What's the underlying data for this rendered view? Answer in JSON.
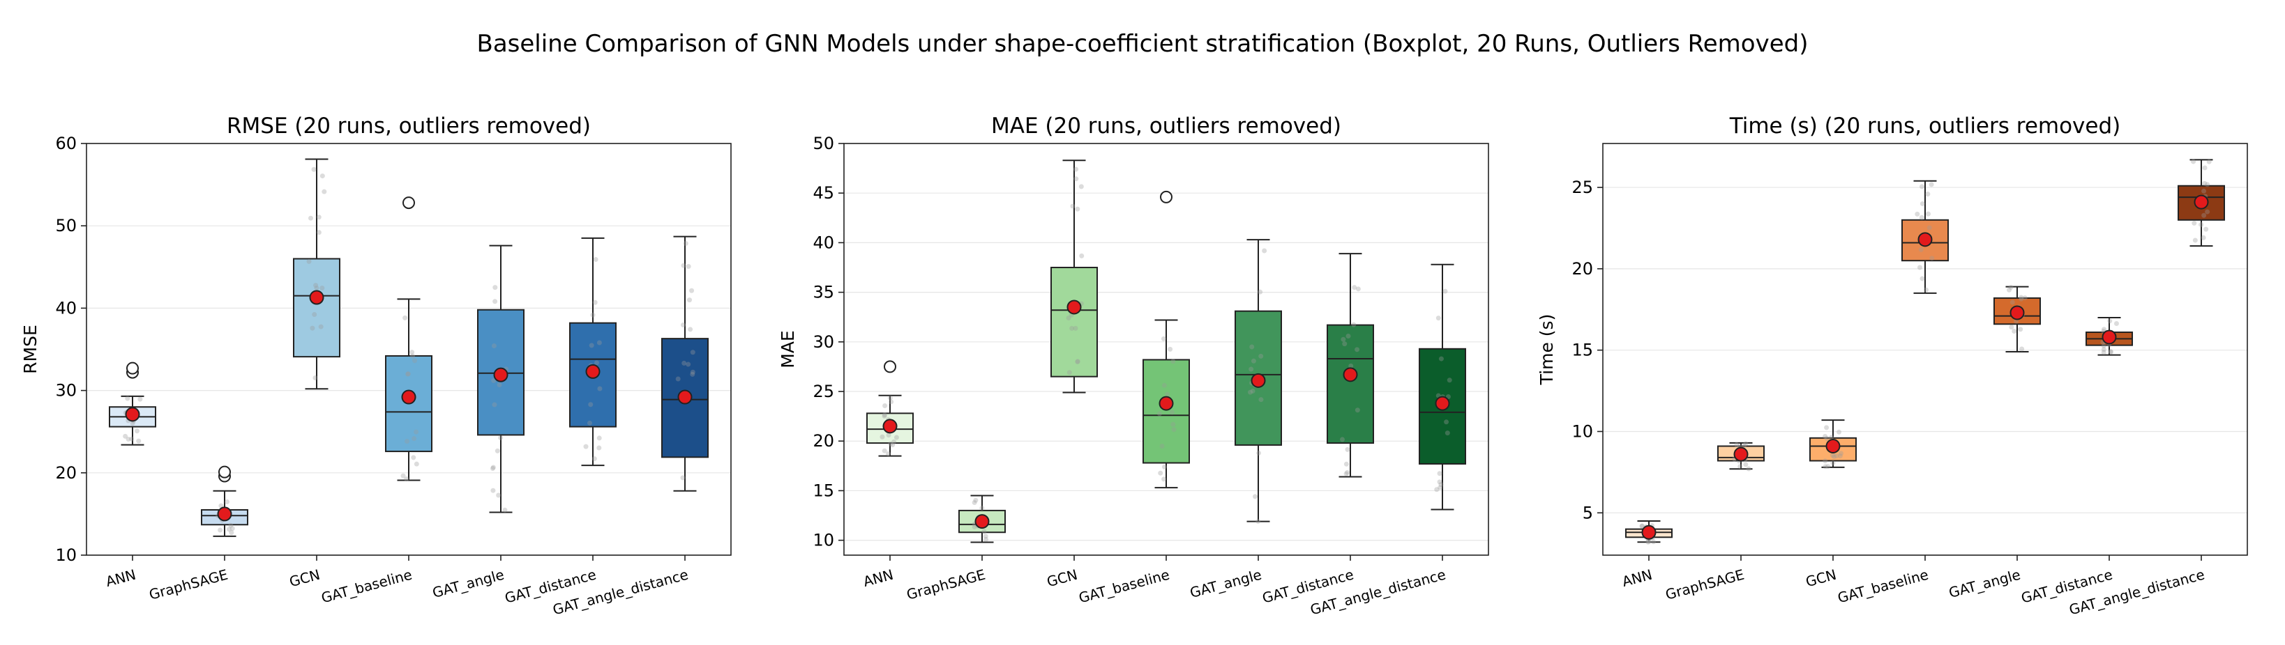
{
  "figure_title": "Baseline Comparison of GNN Models under shape-coefficient stratification (Boxplot, 20 Runs, Outliers Removed)",
  "chart_data": [
    {
      "type": "boxplot",
      "title": "RMSE (20 runs, outliers removed)",
      "ylabel": "RMSE",
      "ylim": [
        10,
        60
      ],
      "yticks": [
        10,
        20,
        30,
        40,
        50,
        60
      ],
      "grid": true,
      "categories": [
        "ANN",
        "GraphSAGE",
        "GCN",
        "GAT_baseline",
        "GAT_angle",
        "GAT_distance",
        "GAT_angle_distance"
      ],
      "colors": [
        "#dbe9f6",
        "#c6dbef",
        "#9ecae1",
        "#6baed6",
        "#4a8fc4",
        "#2f6fad",
        "#1c4f8a"
      ],
      "boxes": [
        {
          "whisker_low": 23.4,
          "q1": 25.6,
          "median": 26.8,
          "q3": 28.0,
          "whisker_high": 29.3,
          "mean": 27.1,
          "outliers": [
            32.2,
            32.7
          ]
        },
        {
          "whisker_low": 12.3,
          "q1": 13.7,
          "median": 14.8,
          "q3": 15.5,
          "whisker_high": 17.8,
          "mean": 15.0,
          "outliers": [
            19.6,
            20.1
          ]
        },
        {
          "whisker_low": 30.2,
          "q1": 34.1,
          "median": 41.5,
          "q3": 46.0,
          "whisker_high": 58.1,
          "mean": 41.3,
          "outliers": []
        },
        {
          "whisker_low": 19.1,
          "q1": 22.6,
          "median": 27.4,
          "q3": 34.2,
          "whisker_high": 41.1,
          "mean": 29.2,
          "outliers": [
            52.8
          ]
        },
        {
          "whisker_low": 15.2,
          "q1": 24.6,
          "median": 32.1,
          "q3": 39.8,
          "whisker_high": 47.6,
          "mean": 31.9,
          "outliers": []
        },
        {
          "whisker_low": 20.9,
          "q1": 25.6,
          "median": 33.8,
          "q3": 38.2,
          "whisker_high": 48.5,
          "mean": 32.3,
          "outliers": []
        },
        {
          "whisker_low": 17.8,
          "q1": 21.9,
          "median": 28.9,
          "q3": 36.3,
          "whisker_high": 48.7,
          "mean": 29.2,
          "outliers": []
        }
      ]
    },
    {
      "type": "boxplot",
      "title": "MAE (20 runs, outliers removed)",
      "ylabel": "MAE",
      "ylim": [
        8.5,
        50
      ],
      "yticks": [
        10,
        15,
        20,
        25,
        30,
        35,
        40,
        45,
        50
      ],
      "grid": true,
      "categories": [
        "ANN",
        "GraphSAGE",
        "GCN",
        "GAT_baseline",
        "GAT_angle",
        "GAT_distance",
        "GAT_angle_distance"
      ],
      "colors": [
        "#e5f5e0",
        "#c7e9c0",
        "#a1d99b",
        "#74c476",
        "#41955b",
        "#2a7f48",
        "#0b5d2b"
      ],
      "boxes": [
        {
          "whisker_low": 18.5,
          "q1": 19.8,
          "median": 21.2,
          "q3": 22.8,
          "whisker_high": 24.6,
          "mean": 21.5,
          "outliers": [
            27.5
          ]
        },
        {
          "whisker_low": 9.8,
          "q1": 10.8,
          "median": 11.6,
          "q3": 13.0,
          "whisker_high": 14.5,
          "mean": 11.9,
          "outliers": []
        },
        {
          "whisker_low": 24.9,
          "q1": 26.5,
          "median": 33.2,
          "q3": 37.5,
          "whisker_high": 48.3,
          "mean": 33.5,
          "outliers": []
        },
        {
          "whisker_low": 15.3,
          "q1": 17.8,
          "median": 22.6,
          "q3": 28.2,
          "whisker_high": 32.2,
          "mean": 23.8,
          "outliers": [
            44.6
          ]
        },
        {
          "whisker_low": 11.9,
          "q1": 19.6,
          "median": 26.7,
          "q3": 33.1,
          "whisker_high": 40.3,
          "mean": 26.1,
          "outliers": []
        },
        {
          "whisker_low": 16.4,
          "q1": 19.8,
          "median": 28.3,
          "q3": 31.7,
          "whisker_high": 38.9,
          "mean": 26.7,
          "outliers": []
        },
        {
          "whisker_low": 13.1,
          "q1": 17.7,
          "median": 22.9,
          "q3": 29.3,
          "whisker_high": 37.8,
          "mean": 23.8,
          "outliers": []
        }
      ]
    },
    {
      "type": "boxplot",
      "title": "Time (s) (20 runs, outliers removed)",
      "ylabel": "Time (s)",
      "ylim": [
        2.4,
        27.7
      ],
      "yticks": [
        5,
        10,
        15,
        20,
        25
      ],
      "grid": true,
      "categories": [
        "ANN",
        "GraphSAGE",
        "GCN",
        "GAT_baseline",
        "GAT_angle",
        "GAT_distance",
        "GAT_angle_distance"
      ],
      "colors": [
        "#fee6ce",
        "#fdd0a2",
        "#fdae6b",
        "#e8894e",
        "#d46a2c",
        "#b8561f",
        "#8c3a14"
      ],
      "boxes": [
        {
          "whisker_low": 3.2,
          "q1": 3.5,
          "median": 3.8,
          "q3": 4.0,
          "whisker_high": 4.5,
          "mean": 3.8,
          "outliers": []
        },
        {
          "whisker_low": 7.7,
          "q1": 8.2,
          "median": 8.4,
          "q3": 9.1,
          "whisker_high": 9.3,
          "mean": 8.6,
          "outliers": []
        },
        {
          "whisker_low": 7.8,
          "q1": 8.2,
          "median": 9.1,
          "q3": 9.6,
          "whisker_high": 10.7,
          "mean": 9.1,
          "outliers": []
        },
        {
          "whisker_low": 18.5,
          "q1": 20.5,
          "median": 21.6,
          "q3": 23.0,
          "whisker_high": 25.4,
          "mean": 21.8,
          "outliers": []
        },
        {
          "whisker_low": 14.9,
          "q1": 16.6,
          "median": 17.1,
          "q3": 18.2,
          "whisker_high": 18.9,
          "mean": 17.3,
          "outliers": []
        },
        {
          "whisker_low": 14.7,
          "q1": 15.3,
          "median": 15.7,
          "q3": 16.1,
          "whisker_high": 17.0,
          "mean": 15.8,
          "outliers": []
        },
        {
          "whisker_low": 21.4,
          "q1": 23.0,
          "median": 24.4,
          "q3": 25.1,
          "whisker_high": 26.7,
          "mean": 24.1,
          "outliers": []
        }
      ]
    }
  ]
}
